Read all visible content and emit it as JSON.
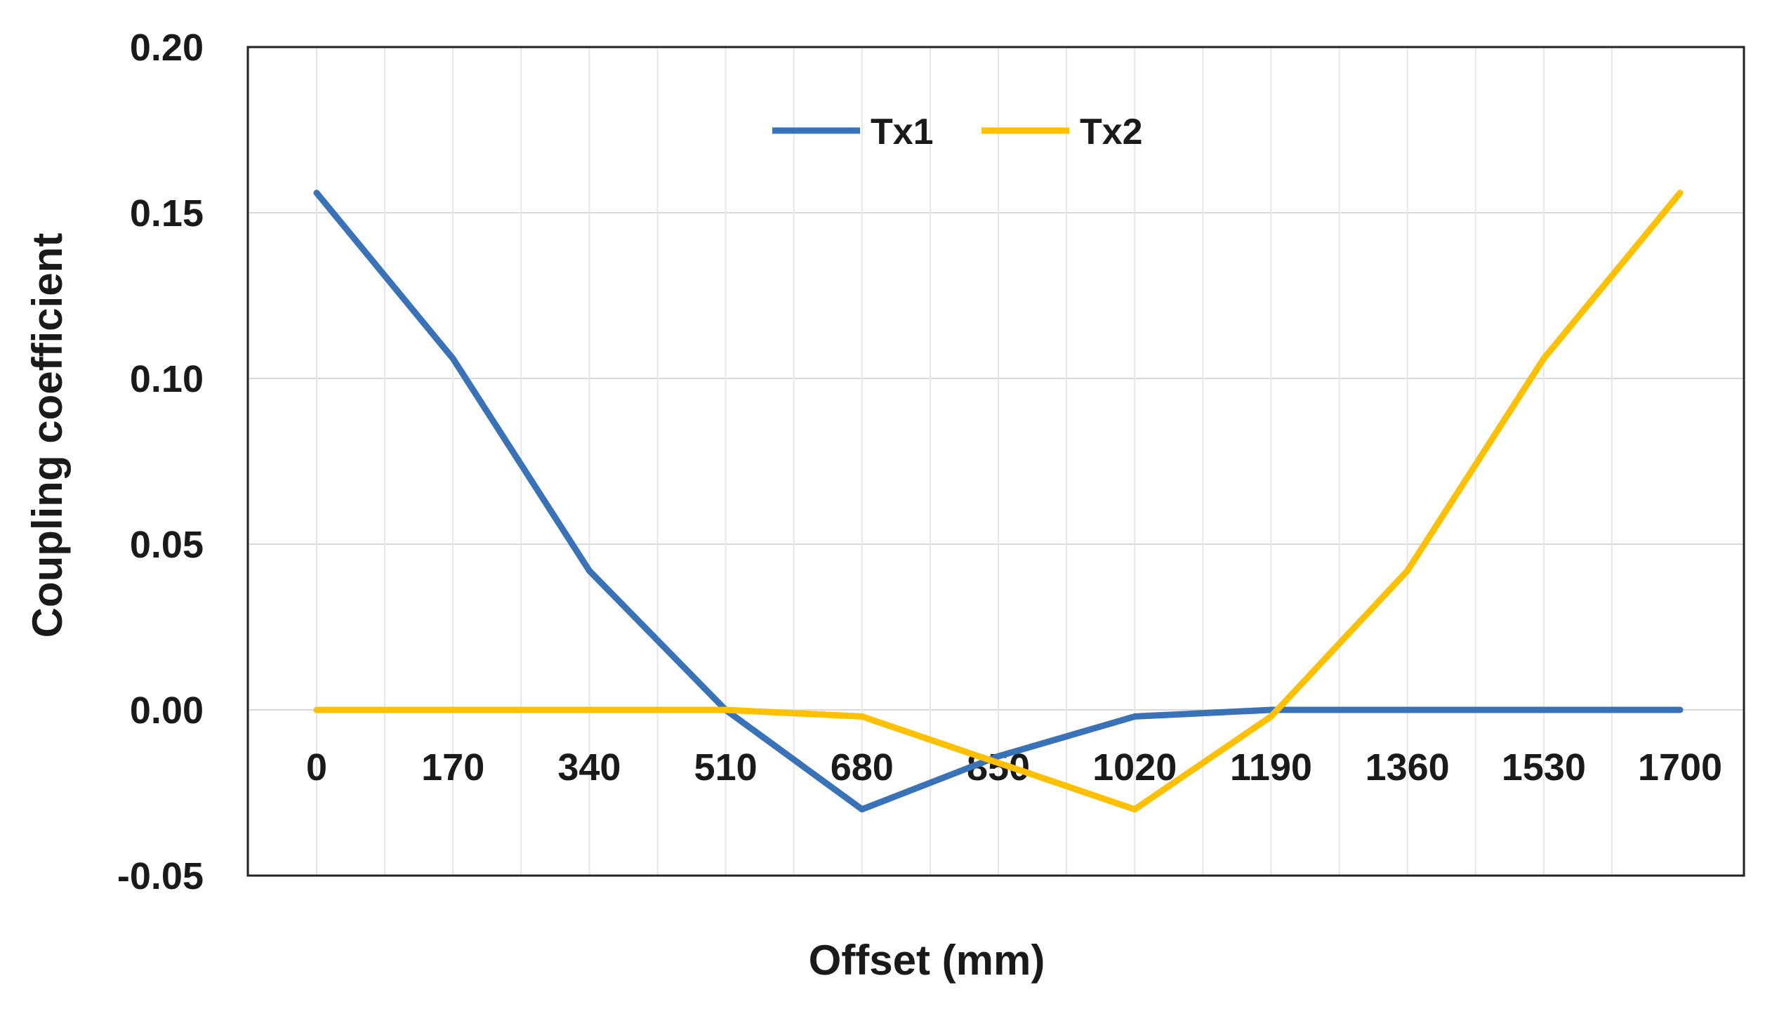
{
  "chart_data": {
    "type": "line",
    "title": "",
    "xlabel": "Offset (mm)",
    "ylabel": "Coupling coefficient",
    "categories": [
      "0",
      "170",
      "340",
      "510",
      "680",
      "850",
      "1020",
      "1190",
      "1360",
      "1530",
      "1700"
    ],
    "ylim": [
      -0.05,
      0.2
    ],
    "yticks": [
      "0.20",
      "0.15",
      "0.10",
      "0.05",
      "0.00",
      "-0.05"
    ],
    "ytick_values": [
      0.2,
      0.15,
      0.1,
      0.05,
      0.0,
      -0.05
    ],
    "grid": true,
    "legend": "top-center",
    "series": [
      {
        "name": "Tx1",
        "color": "#3A72B8",
        "values": [
          0.156,
          0.106,
          0.042,
          0.0,
          -0.03,
          -0.014,
          -0.002,
          0.0,
          0.0,
          0.0,
          0.0
        ]
      },
      {
        "name": "Tx2",
        "color": "#FFC000",
        "values": [
          0.0,
          0.0,
          0.0,
          0.0,
          -0.002,
          -0.016,
          -0.03,
          -0.002,
          0.042,
          0.106,
          0.156
        ]
      }
    ]
  }
}
